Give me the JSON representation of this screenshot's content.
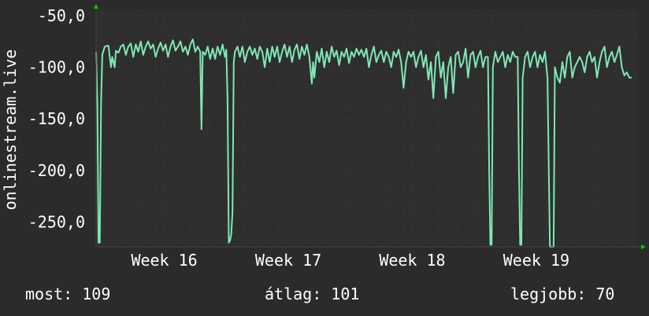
{
  "chart_data": {
    "type": "line",
    "ylabel": "onlinestream.live",
    "y_ticks": [
      "-50,0",
      "-100,0",
      "-150,0",
      "-200,0",
      "-250,0"
    ],
    "y_tick_values": [
      -50,
      -100,
      -150,
      -200,
      -250
    ],
    "ylim": [
      -274,
      -44
    ],
    "x_ticks": [
      "Week 16",
      "Week 17",
      "Week 18",
      "Week 19"
    ],
    "x_tick_positions": [
      16,
      17,
      18,
      19
    ],
    "xlim": [
      15.45,
      19.82
    ],
    "grid": true,
    "colors": {
      "background": "#2b2b2b",
      "plot": "#2e2e2e",
      "grid_major": "#6a2a2a",
      "grid_minor": "#3c3c3c",
      "line": "#7ee8b4",
      "axis_arrow": "#00cc00"
    },
    "series": [
      {
        "values": [
          [
            15.45,
            -85
          ],
          [
            15.46,
            -135
          ],
          [
            15.47,
            -270
          ],
          [
            15.48,
            -270
          ],
          [
            15.49,
            -135
          ],
          [
            15.5,
            -88
          ],
          [
            15.52,
            -80
          ],
          [
            15.55,
            -79
          ],
          [
            15.57,
            -100
          ],
          [
            15.58,
            -90
          ],
          [
            15.6,
            -100
          ],
          [
            15.61,
            -84
          ],
          [
            15.63,
            -86
          ],
          [
            15.65,
            -80
          ],
          [
            15.67,
            -78
          ],
          [
            15.69,
            -88
          ],
          [
            15.71,
            -80
          ],
          [
            15.73,
            -77
          ],
          [
            15.75,
            -90
          ],
          [
            15.77,
            -78
          ],
          [
            15.79,
            -85
          ],
          [
            15.81,
            -75
          ],
          [
            15.83,
            -88
          ],
          [
            15.85,
            -80
          ],
          [
            15.87,
            -75
          ],
          [
            15.89,
            -82
          ],
          [
            15.91,
            -78
          ],
          [
            15.93,
            -90
          ],
          [
            15.95,
            -82
          ],
          [
            15.97,
            -76
          ],
          [
            15.99,
            -84
          ],
          [
            16.01,
            -78
          ],
          [
            16.03,
            -90
          ],
          [
            16.05,
            -80
          ],
          [
            16.07,
            -74
          ],
          [
            16.09,
            -84
          ],
          [
            16.11,
            -80
          ],
          [
            16.13,
            -75
          ],
          [
            16.15,
            -85
          ],
          [
            16.17,
            -80
          ],
          [
            16.19,
            -88
          ],
          [
            16.21,
            -78
          ],
          [
            16.23,
            -73
          ],
          [
            16.25,
            -85
          ],
          [
            16.27,
            -80
          ],
          [
            16.29,
            -85
          ],
          [
            16.3,
            -160
          ],
          [
            16.31,
            -85
          ],
          [
            16.33,
            -88
          ],
          [
            16.35,
            -80
          ],
          [
            16.37,
            -92
          ],
          [
            16.39,
            -82
          ],
          [
            16.41,
            -92
          ],
          [
            16.43,
            -80
          ],
          [
            16.45,
            -88
          ],
          [
            16.47,
            -78
          ],
          [
            16.49,
            -90
          ],
          [
            16.5,
            -83
          ],
          [
            16.51,
            -130
          ],
          [
            16.52,
            -270
          ],
          [
            16.53,
            -268
          ],
          [
            16.54,
            -262
          ],
          [
            16.55,
            -240
          ],
          [
            16.56,
            -95
          ],
          [
            16.57,
            -85
          ],
          [
            16.59,
            -80
          ],
          [
            16.61,
            -90
          ],
          [
            16.63,
            -80
          ],
          [
            16.65,
            -95
          ],
          [
            16.67,
            -85
          ],
          [
            16.69,
            -80
          ],
          [
            16.71,
            -88
          ],
          [
            16.73,
            -82
          ],
          [
            16.75,
            -92
          ],
          [
            16.77,
            -80
          ],
          [
            16.79,
            -85
          ],
          [
            16.81,
            -100
          ],
          [
            16.83,
            -82
          ],
          [
            16.85,
            -95
          ],
          [
            16.87,
            -80
          ],
          [
            16.89,
            -90
          ],
          [
            16.91,
            -80
          ],
          [
            16.93,
            -95
          ],
          [
            16.95,
            -85
          ],
          [
            16.97,
            -78
          ],
          [
            16.99,
            -90
          ],
          [
            17.01,
            -80
          ],
          [
            17.03,
            -95
          ],
          [
            17.05,
            -83
          ],
          [
            17.07,
            -78
          ],
          [
            17.09,
            -92
          ],
          [
            17.11,
            -80
          ],
          [
            17.13,
            -88
          ],
          [
            17.15,
            -78
          ],
          [
            17.17,
            -90
          ],
          [
            17.19,
            -116
          ],
          [
            17.2,
            -95
          ],
          [
            17.21,
            -110
          ],
          [
            17.23,
            -85
          ],
          [
            17.25,
            -95
          ],
          [
            17.27,
            -82
          ],
          [
            17.29,
            -100
          ],
          [
            17.31,
            -85
          ],
          [
            17.33,
            -95
          ],
          [
            17.35,
            -80
          ],
          [
            17.37,
            -90
          ],
          [
            17.39,
            -84
          ],
          [
            17.41,
            -98
          ],
          [
            17.43,
            -85
          ],
          [
            17.45,
            -90
          ],
          [
            17.47,
            -82
          ],
          [
            17.49,
            -96
          ],
          [
            17.51,
            -85
          ],
          [
            17.53,
            -90
          ],
          [
            17.55,
            -82
          ],
          [
            17.57,
            -88
          ],
          [
            17.59,
            -83
          ],
          [
            17.61,
            -90
          ],
          [
            17.63,
            -82
          ],
          [
            17.65,
            -100
          ],
          [
            17.67,
            -88
          ],
          [
            17.69,
            -80
          ],
          [
            17.71,
            -95
          ],
          [
            17.73,
            -88
          ],
          [
            17.75,
            -84
          ],
          [
            17.77,
            -95
          ],
          [
            17.79,
            -85
          ],
          [
            17.81,
            -90
          ],
          [
            17.83,
            -100
          ],
          [
            17.85,
            -85
          ],
          [
            17.87,
            -90
          ],
          [
            17.89,
            -83
          ],
          [
            17.91,
            -95
          ],
          [
            17.93,
            -120
          ],
          [
            17.95,
            -95
          ],
          [
            17.97,
            -85
          ],
          [
            17.99,
            -90
          ],
          [
            18.01,
            -85
          ],
          [
            18.03,
            -100
          ],
          [
            18.05,
            -90
          ],
          [
            18.07,
            -84
          ],
          [
            18.09,
            -100
          ],
          [
            18.11,
            -88
          ],
          [
            18.13,
            -112
          ],
          [
            18.15,
            -95
          ],
          [
            18.17,
            -130
          ],
          [
            18.19,
            -90
          ],
          [
            18.21,
            -85
          ],
          [
            18.23,
            -110
          ],
          [
            18.25,
            -95
          ],
          [
            18.27,
            -130
          ],
          [
            18.29,
            -100
          ],
          [
            18.31,
            -90
          ],
          [
            18.33,
            -125
          ],
          [
            18.35,
            -88
          ],
          [
            18.37,
            -85
          ],
          [
            18.39,
            -100
          ],
          [
            18.41,
            -95
          ],
          [
            18.43,
            -82
          ],
          [
            18.45,
            -110
          ],
          [
            18.47,
            -88
          ],
          [
            18.49,
            -85
          ],
          [
            18.51,
            -100
          ],
          [
            18.53,
            -90
          ],
          [
            18.55,
            -84
          ],
          [
            18.57,
            -100
          ],
          [
            18.59,
            -90
          ],
          [
            18.61,
            -90
          ],
          [
            18.62,
            -200
          ],
          [
            18.63,
            -272
          ],
          [
            18.64,
            -272
          ],
          [
            18.65,
            -100
          ],
          [
            18.67,
            -85
          ],
          [
            18.69,
            -95
          ],
          [
            18.71,
            -90
          ],
          [
            18.73,
            -85
          ],
          [
            18.75,
            -100
          ],
          [
            18.77,
            -88
          ],
          [
            18.79,
            -95
          ],
          [
            18.81,
            -85
          ],
          [
            18.83,
            -90
          ],
          [
            18.85,
            -90
          ],
          [
            18.86,
            -200
          ],
          [
            18.87,
            -272
          ],
          [
            18.88,
            -272
          ],
          [
            18.89,
            -110
          ],
          [
            18.91,
            -90
          ],
          [
            18.93,
            -85
          ],
          [
            18.95,
            -100
          ],
          [
            18.97,
            -90
          ],
          [
            18.99,
            -85
          ],
          [
            19.01,
            -100
          ],
          [
            19.03,
            -88
          ],
          [
            19.05,
            -95
          ],
          [
            19.07,
            -85
          ],
          [
            19.09,
            -110
          ],
          [
            19.1,
            -190
          ],
          [
            19.11,
            -274
          ],
          [
            19.12,
            -274
          ],
          [
            19.13,
            -274
          ],
          [
            19.14,
            -274
          ],
          [
            19.15,
            -100
          ],
          [
            19.17,
            -110
          ],
          [
            19.19,
            -115
          ],
          [
            19.21,
            -95
          ],
          [
            19.23,
            -110
          ],
          [
            19.25,
            -90
          ],
          [
            19.27,
            -85
          ],
          [
            19.29,
            -110
          ],
          [
            19.31,
            -100
          ],
          [
            19.33,
            -95
          ],
          [
            19.35,
            -90
          ],
          [
            19.37,
            -95
          ],
          [
            19.39,
            -105
          ],
          [
            19.41,
            -90
          ],
          [
            19.43,
            -85
          ],
          [
            19.45,
            -95
          ],
          [
            19.47,
            -90
          ],
          [
            19.49,
            -110
          ],
          [
            19.51,
            -95
          ],
          [
            19.53,
            -85
          ],
          [
            19.55,
            -80
          ],
          [
            19.57,
            -100
          ],
          [
            19.59,
            -90
          ],
          [
            19.61,
            -85
          ],
          [
            19.63,
            -95
          ],
          [
            19.65,
            -88
          ],
          [
            19.67,
            -80
          ],
          [
            19.69,
            -100
          ],
          [
            19.71,
            -108
          ],
          [
            19.73,
            -105
          ],
          [
            19.75,
            -110
          ],
          [
            19.77,
            -110
          ]
        ]
      }
    ]
  },
  "stats": {
    "current_label": "most:",
    "current_value": "109",
    "average_label": "átlag:",
    "average_value": "101",
    "best_label": "legjobb:",
    "best_value": "70"
  }
}
